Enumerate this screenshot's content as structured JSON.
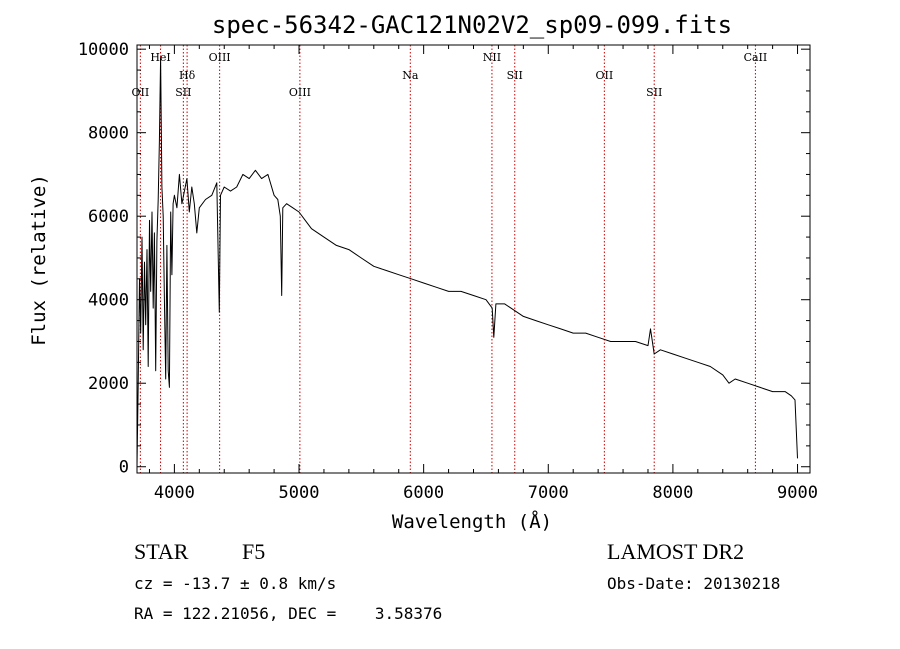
{
  "chart_data": {
    "type": "line",
    "title": "spec-56342-GAC121N02V2_sp09-099.fits",
    "xlabel": "Wavelength (Å)",
    "ylabel": "Flux (relative)",
    "xlim": [
      3700,
      9100
    ],
    "ylim": [
      -150,
      10100
    ],
    "x_ticks": [
      4000,
      5000,
      6000,
      7000,
      8000,
      9000
    ],
    "y_ticks": [
      0,
      2000,
      4000,
      6000,
      8000,
      10000
    ],
    "grid": false,
    "line_color": "#000000",
    "marker_color": "#cc0000",
    "line_markers": [
      {
        "label": "OII",
        "x": 3727,
        "row": 3
      },
      {
        "label": "HeI",
        "x": 3889,
        "row": 1
      },
      {
        "label": "Hδ",
        "x": 4102,
        "row": 2
      },
      {
        "label": "SII",
        "x": 4072,
        "row": 3
      },
      {
        "label": "OIII",
        "x": 4363,
        "row": 1
      },
      {
        "label": "OIII",
        "x": 5007,
        "row": 3
      },
      {
        "label": "Na",
        "x": 5893,
        "row": 2
      },
      {
        "label": "NII",
        "x": 6548,
        "row": 1
      },
      {
        "label": "SII",
        "x": 6731,
        "row": 2
      },
      {
        "label": "OII",
        "x": 7450,
        "row": 2
      },
      {
        "label": "SII",
        "x": 7850,
        "row": 3
      },
      {
        "label": "CaII",
        "x": 8662,
        "row": 1
      }
    ],
    "series": [
      {
        "x": [
          3700,
          3710,
          3720,
          3730,
          3740,
          3750,
          3760,
          3770,
          3780,
          3790,
          3800,
          3810,
          3820,
          3830,
          3840,
          3850,
          3860,
          3870,
          3880,
          3889,
          3900,
          3910,
          3920,
          3930,
          3940,
          3950,
          3960,
          3970,
          3980,
          3990,
          4000,
          4020,
          4040,
          4060,
          4080,
          4100,
          4120,
          4140,
          4160,
          4180,
          4200,
          4250,
          4300,
          4340,
          4360,
          4370,
          4400,
          4450,
          4500,
          4550,
          4600,
          4650,
          4700,
          4750,
          4800,
          4830,
          4850,
          4861,
          4870,
          4900,
          4950,
          5000,
          5050,
          5100,
          5200,
          5300,
          5400,
          5500,
          5600,
          5700,
          5800,
          5900,
          6000,
          6100,
          6200,
          6300,
          6400,
          6500,
          6550,
          6563,
          6580,
          6650,
          6700,
          6800,
          6900,
          7000,
          7100,
          7200,
          7300,
          7400,
          7500,
          7600,
          7700,
          7800,
          7820,
          7850,
          7900,
          8000,
          8100,
          8200,
          8300,
          8400,
          8450,
          8500,
          8600,
          8700,
          8800,
          8900,
          8950,
          8980,
          9000
        ],
        "y": [
          0,
          2000,
          4500,
          3200,
          5500,
          2800,
          4900,
          3400,
          5200,
          2400,
          5900,
          4200,
          6100,
          3800,
          5600,
          2300,
          5400,
          6400,
          7800,
          9800,
          6700,
          6000,
          4000,
          2100,
          5300,
          2300,
          1900,
          6100,
          4600,
          6300,
          6500,
          6200,
          7000,
          6300,
          6600,
          6900,
          6100,
          6700,
          6300,
          5600,
          6200,
          6400,
          6500,
          6800,
          3700,
          6500,
          6700,
          6600,
          6700,
          7000,
          6900,
          7100,
          6900,
          7000,
          6500,
          6400,
          6000,
          4100,
          6200,
          6300,
          6200,
          6100,
          5900,
          5700,
          5500,
          5300,
          5200,
          5000,
          4800,
          4700,
          4600,
          4500,
          4400,
          4300,
          4200,
          4200,
          4100,
          4000,
          3800,
          3100,
          3900,
          3900,
          3800,
          3600,
          3500,
          3400,
          3300,
          3200,
          3200,
          3100,
          3000,
          3000,
          3000,
          2900,
          3300,
          2700,
          2800,
          2700,
          2600,
          2500,
          2400,
          2200,
          2000,
          2100,
          2000,
          1900,
          1800,
          1800,
          1700,
          1600,
          200
        ]
      }
    ]
  },
  "footer": {
    "object_class": "STAR",
    "subclass": "F5",
    "survey": "LAMOST DR2",
    "cz": "cz = -13.7 ± 0.8 km/s",
    "obs_date": "Obs-Date: 20130218",
    "coords": "RA = 122.21056, DEC =    3.58376"
  }
}
